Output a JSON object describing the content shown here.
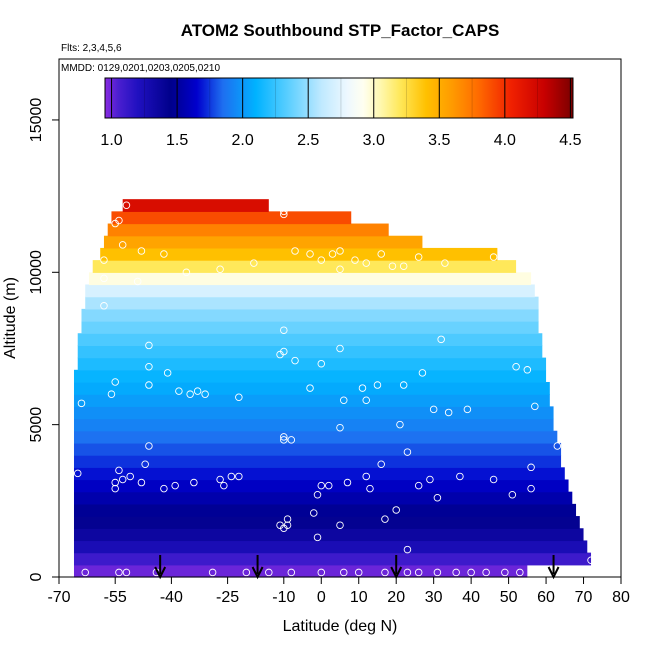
{
  "chart_data": {
    "type": "heatmap",
    "title": "ATOM2 Southbound STP_Factor_CAPS",
    "annotations": {
      "flights": "Flts: 2,3,4,5,6",
      "dates": "MMDD: 0129,0201,0203,0205,0210"
    },
    "xlabel": "Latitude (deg N)",
    "ylabel": "Altitude (m)",
    "xlim": [
      -70,
      80
    ],
    "ylim": [
      0,
      17000
    ],
    "x_ticks": [
      -70,
      -55,
      -40,
      -25,
      -10,
      0,
      10,
      20,
      30,
      40,
      50,
      60,
      70,
      80
    ],
    "y_ticks": [
      0,
      5000,
      10000,
      15000
    ],
    "colorbar": {
      "min": 0.95,
      "max": 4.52,
      "ticks": [
        1.0,
        1.5,
        2.0,
        2.5,
        3.0,
        3.5,
        4.0,
        4.5
      ],
      "tick_labels": [
        "1.0",
        "1.5",
        "2.0",
        "2.5",
        "3.0",
        "3.5",
        "4.0",
        "4.5"
      ],
      "stops": [
        {
          "v": 0.95,
          "color": "#8a2be2"
        },
        {
          "v": 1.05,
          "color": "#4b1fd0"
        },
        {
          "v": 1.2,
          "color": "#2010c0"
        },
        {
          "v": 1.45,
          "color": "#00008b"
        },
        {
          "v": 1.65,
          "color": "#0000cd"
        },
        {
          "v": 1.85,
          "color": "#1e6ff0"
        },
        {
          "v": 2.1,
          "color": "#00b2ff"
        },
        {
          "v": 2.35,
          "color": "#5ccfff"
        },
        {
          "v": 2.6,
          "color": "#bfe9ff"
        },
        {
          "v": 2.8,
          "color": "#eef8ff"
        },
        {
          "v": 2.92,
          "color": "#fffff0"
        },
        {
          "v": 3.05,
          "color": "#fff8b0"
        },
        {
          "v": 3.2,
          "color": "#ffe85a"
        },
        {
          "v": 3.4,
          "color": "#ffc000"
        },
        {
          "v": 3.6,
          "color": "#ff9a00"
        },
        {
          "v": 3.8,
          "color": "#ff6a00"
        },
        {
          "v": 4.05,
          "color": "#f02000"
        },
        {
          "v": 4.3,
          "color": "#c80000"
        },
        {
          "v": 4.52,
          "color": "#7a0000"
        }
      ]
    },
    "layers": [
      {
        "z0": 0,
        "z1": 400,
        "lat0": -66,
        "lat1": 55,
        "value": 1.0
      },
      {
        "z0": 400,
        "z1": 800,
        "lat0": -66,
        "lat1": 72,
        "value": 1.1
      },
      {
        "z0": 800,
        "z1": 1200,
        "lat0": -66,
        "lat1": 71,
        "value": 1.25
      },
      {
        "z0": 1200,
        "z1": 1600,
        "lat0": -66,
        "lat1": 70,
        "value": 1.35
      },
      {
        "z0": 1600,
        "z1": 2000,
        "lat0": -66,
        "lat1": 69,
        "value": 1.42
      },
      {
        "z0": 2000,
        "z1": 2400,
        "lat0": -66,
        "lat1": 68,
        "value": 1.48
      },
      {
        "z0": 2400,
        "z1": 2800,
        "lat0": -66,
        "lat1": 67,
        "value": 1.55
      },
      {
        "z0": 2800,
        "z1": 3200,
        "lat0": -66,
        "lat1": 66,
        "value": 1.62
      },
      {
        "z0": 3200,
        "z1": 3600,
        "lat0": -66,
        "lat1": 65,
        "value": 1.68
      },
      {
        "z0": 3600,
        "z1": 4000,
        "lat0": -66,
        "lat1": 64,
        "value": 1.74
      },
      {
        "z0": 4000,
        "z1": 4400,
        "lat0": -66,
        "lat1": 64,
        "value": 1.8
      },
      {
        "z0": 4400,
        "z1": 4800,
        "lat0": -66,
        "lat1": 63,
        "value": 1.86
      },
      {
        "z0": 4800,
        "z1": 5200,
        "lat0": -66,
        "lat1": 62,
        "value": 1.92
      },
      {
        "z0": 5200,
        "z1": 5600,
        "lat0": -66,
        "lat1": 62,
        "value": 1.97
      },
      {
        "z0": 5600,
        "z1": 6000,
        "lat0": -66,
        "lat1": 61,
        "value": 2.02
      },
      {
        "z0": 6000,
        "z1": 6400,
        "lat0": -66,
        "lat1": 61,
        "value": 2.07
      },
      {
        "z0": 6400,
        "z1": 6800,
        "lat0": -66,
        "lat1": 60,
        "value": 2.12
      },
      {
        "z0": 6800,
        "z1": 7200,
        "lat0": -65,
        "lat1": 60,
        "value": 2.18
      },
      {
        "z0": 7200,
        "z1": 7600,
        "lat0": -65,
        "lat1": 59,
        "value": 2.24
      },
      {
        "z0": 7600,
        "z1": 8000,
        "lat0": -65,
        "lat1": 59,
        "value": 2.31
      },
      {
        "z0": 8000,
        "z1": 8400,
        "lat0": -64,
        "lat1": 58,
        "value": 2.38
      },
      {
        "z0": 8400,
        "z1": 8800,
        "lat0": -64,
        "lat1": 58,
        "value": 2.45
      },
      {
        "z0": 8800,
        "z1": 9200,
        "lat0": -63,
        "lat1": 58,
        "value": 2.55
      },
      {
        "z0": 9200,
        "z1": 9600,
        "lat0": -63,
        "lat1": 57,
        "value": 2.7
      },
      {
        "z0": 9600,
        "z1": 10000,
        "lat0": -62,
        "lat1": 56,
        "value": 2.95
      },
      {
        "z0": 10000,
        "z1": 10400,
        "lat0": -61,
        "lat1": 52,
        "value": 3.2
      },
      {
        "z0": 10400,
        "z1": 10800,
        "lat0": -59,
        "lat1": 47,
        "value": 3.4
      },
      {
        "z0": 10800,
        "z1": 11200,
        "lat0": -58,
        "lat1": 27,
        "value": 3.55
      },
      {
        "z0": 11200,
        "z1": 11600,
        "lat0": -57,
        "lat1": 18,
        "value": 3.7
      },
      {
        "z0": 11600,
        "z1": 12000,
        "lat0": -56,
        "lat1": 8,
        "value": 3.9
      },
      {
        "z0": 12000,
        "z1": 12400,
        "lat0": -53,
        "lat1": -14,
        "value": 4.2
      }
    ],
    "profile_markers": [
      -43,
      -17,
      20,
      62
    ],
    "sample_points": [
      [
        -65,
        3400
      ],
      [
        -64,
        5700
      ],
      [
        -63,
        150
      ],
      [
        -56,
        6000
      ],
      [
        -55,
        6400
      ],
      [
        -54,
        150
      ],
      [
        -52,
        150
      ],
      [
        -55,
        3100
      ],
      [
        -55,
        2900
      ],
      [
        -54,
        3500
      ],
      [
        -53,
        3200
      ],
      [
        -51,
        3300
      ],
      [
        -48,
        3100
      ],
      [
        -47,
        3700
      ],
      [
        -46,
        4300
      ],
      [
        -46,
        6300
      ],
      [
        -46,
        6900
      ],
      [
        -46,
        7600
      ],
      [
        -44,
        150
      ],
      [
        -42,
        2900
      ],
      [
        -41,
        6700
      ],
      [
        -39,
        3000
      ],
      [
        -38,
        6100
      ],
      [
        -35,
        6000
      ],
      [
        -34,
        3100
      ],
      [
        -33,
        6100
      ],
      [
        -31,
        6000
      ],
      [
        -29,
        150
      ],
      [
        -27,
        3200
      ],
      [
        -26,
        3000
      ],
      [
        -24,
        3300
      ],
      [
        -22,
        5900
      ],
      [
        -22,
        3300
      ],
      [
        -20,
        150
      ],
      [
        -14,
        150
      ],
      [
        -11,
        7300
      ],
      [
        -10,
        4600
      ],
      [
        -10,
        4500
      ],
      [
        -10,
        7400
      ],
      [
        -10,
        8100
      ],
      [
        -11,
        1700
      ],
      [
        -10,
        1600
      ],
      [
        -9,
        1700
      ],
      [
        -9,
        1900
      ],
      [
        -8,
        150
      ],
      [
        -8,
        4500
      ],
      [
        -7,
        7100
      ],
      [
        -3,
        6200
      ],
      [
        -2,
        2100
      ],
      [
        -1,
        2700
      ],
      [
        -1,
        1300
      ],
      [
        0,
        150
      ],
      [
        0,
        7000
      ],
      [
        0,
        3000
      ],
      [
        2,
        3000
      ],
      [
        5,
        1700
      ],
      [
        5,
        4900
      ],
      [
        5,
        7500
      ],
      [
        6,
        150
      ],
      [
        6,
        5800
      ],
      [
        7,
        3100
      ],
      [
        10,
        150
      ],
      [
        11,
        6200
      ],
      [
        12,
        5800
      ],
      [
        12,
        3300
      ],
      [
        13,
        2900
      ],
      [
        15,
        6300
      ],
      [
        16,
        3700
      ],
      [
        17,
        150
      ],
      [
        17,
        1900
      ],
      [
        20,
        2200
      ],
      [
        21,
        5000
      ],
      [
        22,
        6300
      ],
      [
        23,
        4100
      ],
      [
        23,
        150
      ],
      [
        23,
        900
      ],
      [
        26,
        3000
      ],
      [
        26,
        150
      ],
      [
        27,
        6700
      ],
      [
        29,
        3200
      ],
      [
        30,
        5500
      ],
      [
        31,
        150
      ],
      [
        31,
        2600
      ],
      [
        32,
        7800
      ],
      [
        34,
        5400
      ],
      [
        36,
        150
      ],
      [
        37,
        3300
      ],
      [
        39,
        5500
      ],
      [
        40,
        150
      ],
      [
        44,
        150
      ],
      [
        46,
        3200
      ],
      [
        49,
        150
      ],
      [
        51,
        2700
      ],
      [
        52,
        6900
      ],
      [
        53,
        150
      ],
      [
        55,
        6800
      ],
      [
        56,
        2900
      ],
      [
        56,
        3600
      ],
      [
        57,
        5600
      ],
      [
        58,
        150
      ],
      [
        63,
        4300
      ],
      [
        72,
        550
      ],
      [
        -52,
        12200
      ],
      [
        -54,
        11700
      ],
      [
        -55,
        11600
      ],
      [
        -53,
        10900
      ],
      [
        -58,
        10400
      ],
      [
        -48,
        10700
      ],
      [
        -42,
        10600
      ],
      [
        -36,
        10000
      ],
      [
        -27,
        10100
      ],
      [
        -18,
        10300
      ],
      [
        -10,
        12000
      ],
      [
        -10,
        11900
      ],
      [
        -7,
        10700
      ],
      [
        -3,
        10600
      ],
      [
        0,
        10400
      ],
      [
        3,
        10600
      ],
      [
        5,
        10700
      ],
      [
        5,
        10100
      ],
      [
        9,
        10400
      ],
      [
        12,
        10300
      ],
      [
        16,
        10600
      ],
      [
        19,
        10200
      ],
      [
        22,
        10200
      ],
      [
        26,
        10500
      ],
      [
        33,
        10300
      ],
      [
        46,
        10500
      ],
      [
        -58,
        9800
      ],
      [
        -49,
        9700
      ],
      [
        -58,
        8900
      ]
    ]
  }
}
